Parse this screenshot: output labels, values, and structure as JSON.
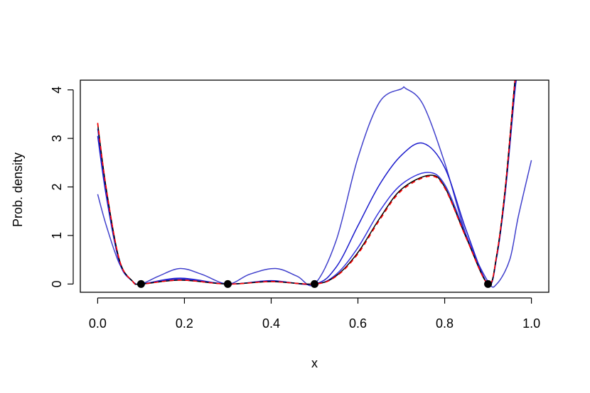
{
  "chart_data": {
    "type": "line",
    "title": "",
    "xlabel": "x",
    "ylabel": "Prob. density",
    "xlim": [
      -0.04,
      1.04
    ],
    "ylim": [
      -0.17,
      4.2
    ],
    "x_ticks": [
      "0.0",
      "0.2",
      "0.4",
      "0.6",
      "0.8",
      "1.0"
    ],
    "y_ticks": [
      "0",
      "1",
      "2",
      "3",
      "4"
    ],
    "grid": false,
    "legend": "none",
    "colors": {
      "black_curve": "#000000",
      "blue_curves": "#2222cc",
      "red_dashed": "#ff0000",
      "points": "#000000"
    },
    "points": [
      {
        "x": 0.1,
        "y": 0
      },
      {
        "x": 0.3,
        "y": 0
      },
      {
        "x": 0.5,
        "y": 0
      },
      {
        "x": 0.9,
        "y": 0
      }
    ],
    "series": [
      {
        "color": "#4040cc",
        "x": [
          0.0,
          0.02,
          0.05,
          0.08,
          0.1,
          0.14,
          0.19,
          0.24,
          0.3,
          0.35,
          0.41,
          0.46,
          0.5,
          0.55,
          0.6,
          0.65,
          0.7,
          0.71,
          0.75,
          0.8,
          0.85,
          0.9,
          0.92,
          0.95,
          0.97,
          1.0
        ],
        "y": [
          1.85,
          1.2,
          0.42,
          0.06,
          0.0,
          0.16,
          0.32,
          0.2,
          0.0,
          0.2,
          0.32,
          0.16,
          0.0,
          0.9,
          2.6,
          3.75,
          4.02,
          4.03,
          3.7,
          2.5,
          1.0,
          0.05,
          0.0,
          0.5,
          1.4,
          2.55
        ]
      },
      {
        "color": "#1a1acc",
        "x": [
          0.0,
          0.02,
          0.05,
          0.08,
          0.1,
          0.19,
          0.3,
          0.4,
          0.5,
          0.55,
          0.6,
          0.65,
          0.7,
          0.75,
          0.8,
          0.85,
          0.9,
          0.92,
          0.94,
          0.96,
          0.965
        ],
        "y": [
          3.05,
          1.8,
          0.45,
          0.06,
          0.0,
          0.12,
          0.0,
          0.07,
          0.0,
          0.35,
          1.2,
          2.05,
          2.65,
          2.9,
          2.4,
          1.1,
          0.0,
          0.55,
          1.9,
          3.8,
          4.2
        ]
      },
      {
        "color": "#3333dd",
        "x": [
          0.0,
          0.02,
          0.05,
          0.08,
          0.1,
          0.19,
          0.3,
          0.4,
          0.5,
          0.55,
          0.6,
          0.65,
          0.7,
          0.76,
          0.8,
          0.85,
          0.9,
          0.92,
          0.94,
          0.96,
          0.962
        ],
        "y": [
          3.2,
          1.9,
          0.48,
          0.06,
          0.0,
          0.1,
          0.0,
          0.06,
          0.0,
          0.2,
          0.75,
          1.5,
          2.05,
          2.3,
          2.05,
          1.0,
          0.0,
          0.6,
          2.0,
          4.0,
          4.2
        ]
      },
      {
        "color": "#000000",
        "x": [
          0.0,
          0.02,
          0.05,
          0.08,
          0.1,
          0.19,
          0.3,
          0.4,
          0.5,
          0.55,
          0.6,
          0.65,
          0.7,
          0.765,
          0.8,
          0.85,
          0.9,
          0.92,
          0.94,
          0.96,
          0.963
        ],
        "y": [
          3.3,
          1.95,
          0.5,
          0.06,
          0.0,
          0.08,
          0.0,
          0.05,
          0.0,
          0.17,
          0.65,
          1.35,
          1.95,
          2.24,
          2.0,
          0.95,
          0.0,
          0.6,
          2.0,
          4.0,
          4.2
        ]
      },
      {
        "color": "#ff0000",
        "dashed": true,
        "x": [
          0.0,
          0.02,
          0.05,
          0.08,
          0.1,
          0.19,
          0.3,
          0.4,
          0.5,
          0.55,
          0.6,
          0.65,
          0.7,
          0.765,
          0.8,
          0.85,
          0.9,
          0.92,
          0.94,
          0.96,
          0.963
        ],
        "y": [
          3.32,
          1.96,
          0.5,
          0.06,
          0.0,
          0.08,
          0.0,
          0.05,
          0.0,
          0.16,
          0.62,
          1.32,
          1.92,
          2.22,
          1.98,
          0.94,
          0.0,
          0.6,
          2.0,
          4.0,
          4.2
        ]
      }
    ]
  }
}
